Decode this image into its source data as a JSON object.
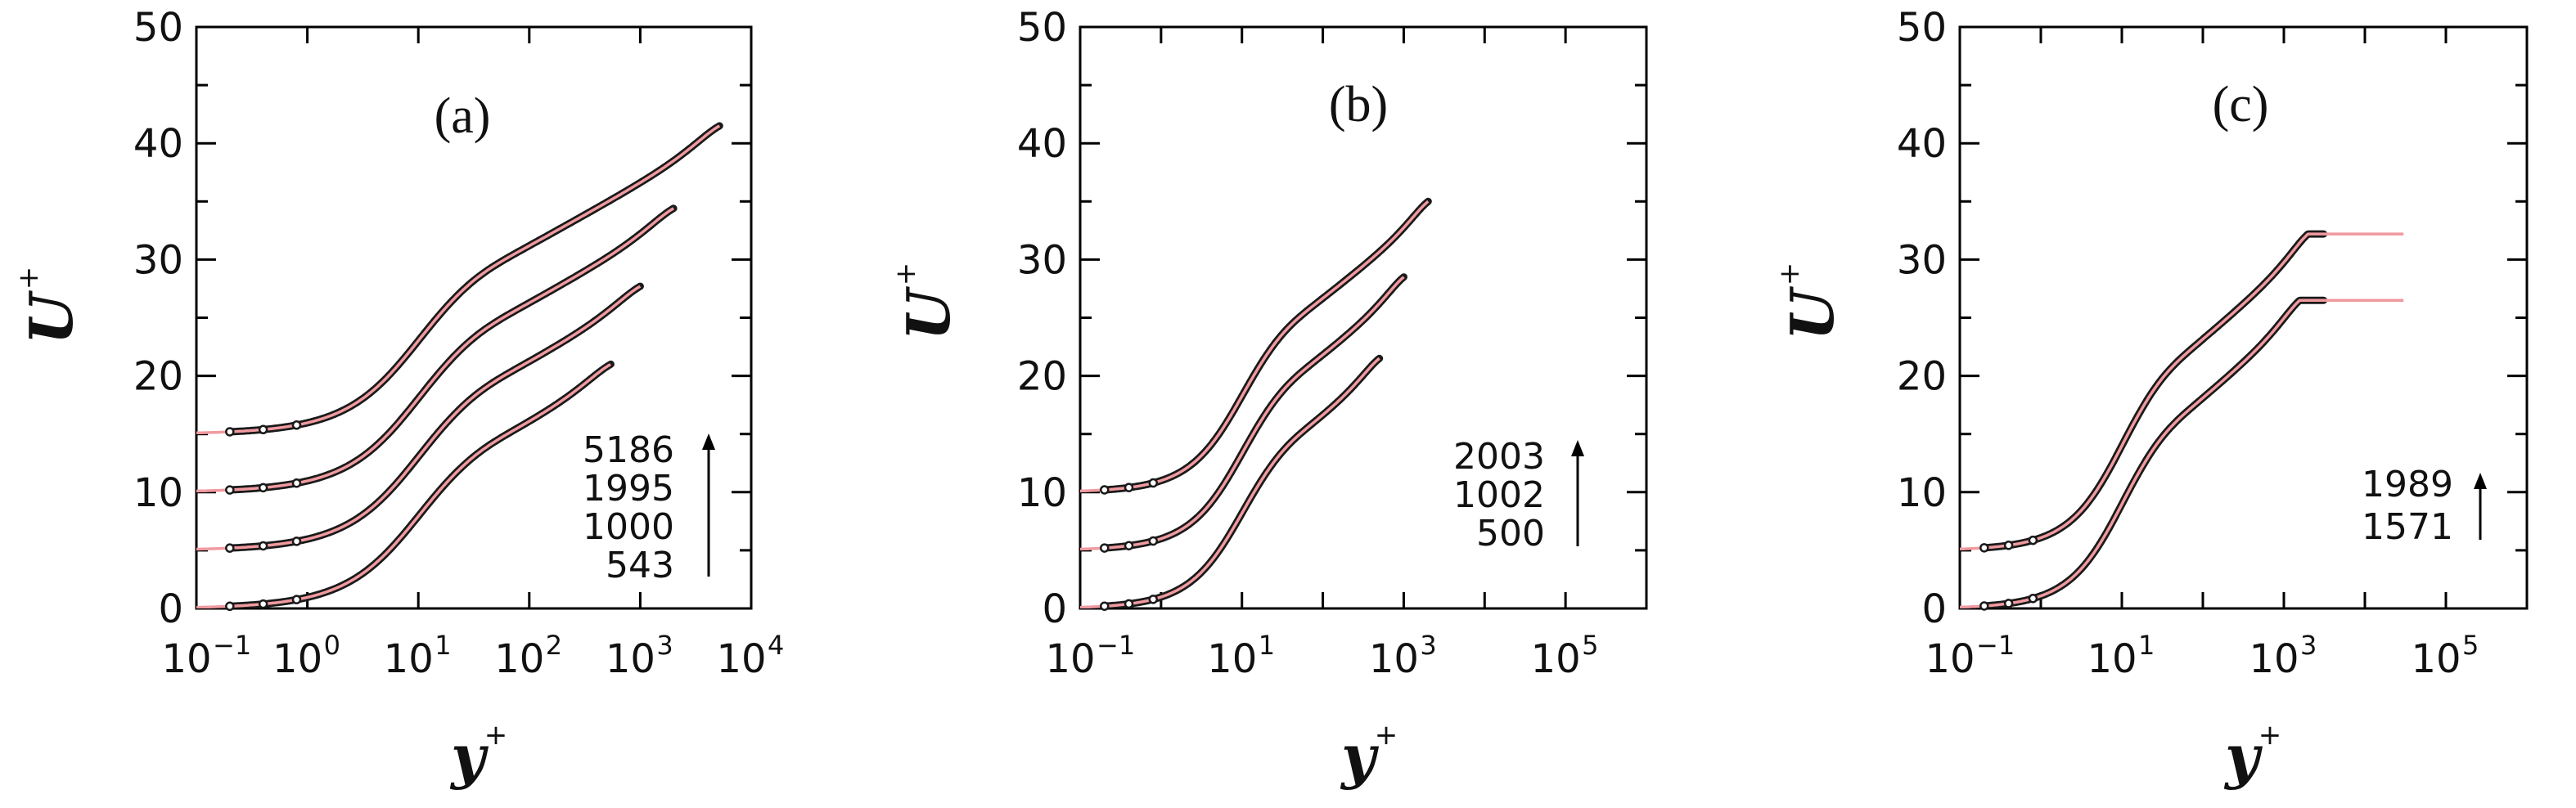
{
  "chart_data": [
    {
      "type": "line",
      "panel_label": "(a)",
      "xlabel": "y",
      "xlabel_sup": "+",
      "ylabel": "U",
      "ylabel_sup": "+",
      "xscale": "log",
      "xlim_exp": [
        -1,
        4
      ],
      "ylim": [
        0,
        50
      ],
      "xtick_exps": [
        -1,
        0,
        1,
        2,
        3,
        4
      ],
      "yticks": [
        0,
        10,
        20,
        30,
        40,
        50
      ],
      "legend_labels": [
        "5186",
        "1995",
        "1000",
        "543"
      ],
      "series": [
        {
          "name": "543",
          "offset": 0,
          "ymax": 543,
          "uend": 21.0,
          "model_end": 540
        },
        {
          "name": "1000",
          "offset": 5,
          "ymax": 1000,
          "uend": 22.7,
          "model_end": 1000
        },
        {
          "name": "1995",
          "offset": 10,
          "ymax": 1995,
          "uend": 24.4,
          "model_end": 1995
        },
        {
          "name": "5186",
          "offset": 15,
          "ymax": 5186,
          "uend": 26.5,
          "model_end": 5186
        }
      ]
    },
    {
      "type": "line",
      "panel_label": "(b)",
      "xlabel": "y",
      "xlabel_sup": "+",
      "ylabel": "U",
      "ylabel_sup": "+",
      "xscale": "log",
      "xlim_exp": [
        -1,
        6
      ],
      "ylim": [
        0,
        50
      ],
      "xtick_exps": [
        -1,
        1,
        3,
        5
      ],
      "yticks": [
        0,
        10,
        20,
        30,
        40,
        50
      ],
      "legend_labels": [
        "2003",
        "1002",
        "500"
      ],
      "series": [
        {
          "name": "500",
          "offset": 0,
          "ymax": 500,
          "uend": 21.5,
          "model_end": 500
        },
        {
          "name": "1002",
          "offset": 5,
          "ymax": 1002,
          "uend": 23.5,
          "model_end": 1002
        },
        {
          "name": "2003",
          "offset": 10,
          "ymax": 2003,
          "uend": 25.0,
          "model_end": 2003
        }
      ]
    },
    {
      "type": "line",
      "panel_label": "(c)",
      "xlabel": "y",
      "xlabel_sup": "+",
      "ylabel": "U",
      "ylabel_sup": "+",
      "xscale": "log",
      "xlim_exp": [
        -1,
        6
      ],
      "ylim": [
        0,
        50
      ],
      "xtick_exps": [
        -1,
        1,
        3,
        5
      ],
      "yticks": [
        0,
        10,
        20,
        30,
        40,
        50
      ],
      "legend_labels": [
        "1989",
        "1571"
      ],
      "series": [
        {
          "name": "1571",
          "offset": 0,
          "ymax": 1571,
          "uend": 26.5,
          "plateau_end": 3100,
          "model_end": 30000
        },
        {
          "name": "1989",
          "offset": 5,
          "ymax": 1989,
          "uend": 27.2,
          "plateau_end": 3100,
          "model_end": 30000
        }
      ]
    }
  ]
}
